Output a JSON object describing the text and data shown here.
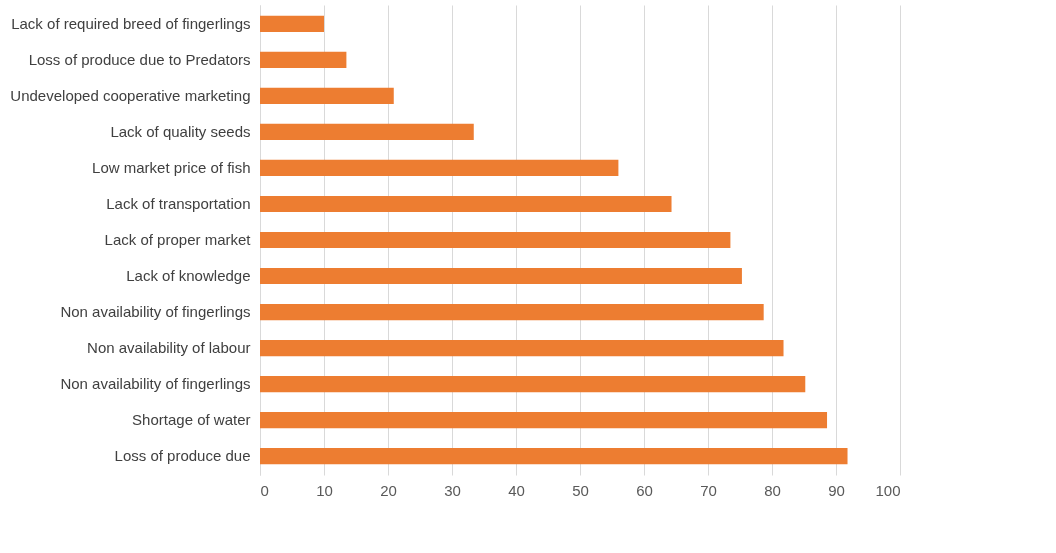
{
  "chart_data": {
    "type": "bar",
    "orientation": "horizontal",
    "categories": [
      "Lack of required breed of fingerlings",
      "Loss of produce due to Predators",
      "Undeveloped cooperative  marketing",
      "Lack of quality seeds",
      "Low market price of fish",
      "Lack of transportation",
      "Lack of proper market",
      "Lack of knowledge",
      "Non availability of fingerlings",
      "Non availability of labour",
      "Non availability of fingerlings",
      "Shortage of water",
      "Loss of produce due"
    ],
    "values": [
      10,
      13.5,
      20.9,
      33.4,
      56,
      64.3,
      73.5,
      75.3,
      78.7,
      81.8,
      85.2,
      88.6,
      91.8
    ],
    "color": "#ed7d31",
    "xlim": [
      0,
      100
    ],
    "xticks": [
      0,
      10,
      20,
      30,
      40,
      50,
      60,
      70,
      80,
      90,
      100
    ],
    "grid": "x"
  }
}
